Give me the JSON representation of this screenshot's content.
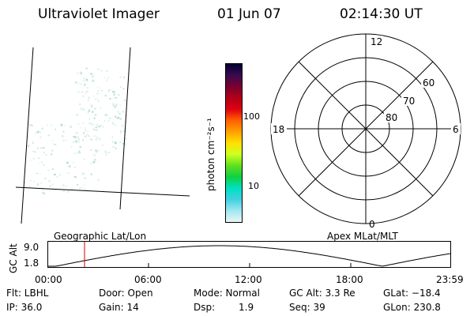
{
  "header": {
    "instrument": "Ultraviolet Imager",
    "date": "01 Jun 07",
    "time": "02:14:30 UT"
  },
  "colorbar": {
    "unit_label": "photon cm⁻²s⁻¹",
    "ticks": [
      "100",
      "10"
    ],
    "colors": [
      "#000030",
      "#3a0a50",
      "#7a0030",
      "#b00018",
      "#e00010",
      "#ff6000",
      "#ffa000",
      "#ffe000",
      "#d0ff20",
      "#60e020",
      "#10d040",
      "#00e0c0",
      "#40d0e0",
      "#a0e8f0",
      "#e8f6f6"
    ]
  },
  "polar": {
    "mlt_labels": {
      "top": "12",
      "left": "18",
      "right": "6",
      "bottom": "0"
    },
    "lat_labels": [
      "60",
      "70",
      "80"
    ]
  },
  "timeline": {
    "left_title": "Geographic Lat/Lon",
    "right_title": "Apex MLat/MLT",
    "axis_label": "GC Alt",
    "y_ticks": [
      "9.0",
      "1.8"
    ],
    "x_ticks": [
      "00:00",
      "06:00",
      "12:00",
      "18:00",
      "23:59"
    ],
    "marker_color": "#d00000"
  },
  "status": {
    "flt": "Flt: LBHL",
    "door": "Door: Open",
    "mode": "Mode: Normal",
    "gc_alt": "GC Alt: 3.3 Re",
    "glat": "GLat: −18.4",
    "ip": "IP: 36.0",
    "gain": "Gain: 14",
    "dsp_label": "Dsp:",
    "dsp_value": "1.9",
    "seq": "Seq: 39",
    "glon": "GLon: 230.8"
  }
}
